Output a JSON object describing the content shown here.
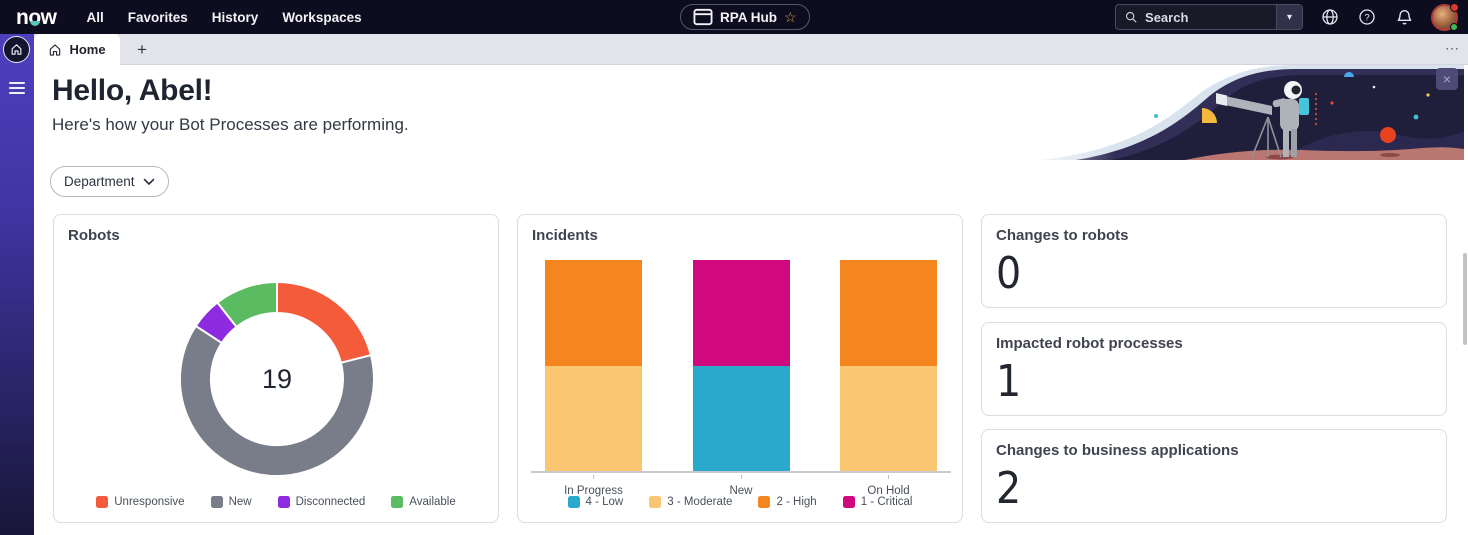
{
  "theme": {
    "nav_bg": "#0D0D1F",
    "rail_top": "#4C40BE",
    "rail_bottom": "#181739",
    "brand_teal": "#5BC6BA"
  },
  "topnav": {
    "logo": "now",
    "menu": [
      "All",
      "Favorites",
      "History",
      "Workspaces"
    ],
    "app_pill": {
      "label": "RPA Hub"
    },
    "search": {
      "placeholder": "Search"
    }
  },
  "icons": {
    "star": "☆",
    "caret": "▾",
    "add_tab": "+",
    "overflow": "⋯",
    "close": "×"
  },
  "tabbar": {
    "home_label": "Home"
  },
  "hero": {
    "greeting": "Hello, Abel!",
    "subtitle": "Here's how your Bot Processes are performing."
  },
  "filters": {
    "department_label": "Department"
  },
  "cards": {
    "stats": [
      {
        "title": "Changes to robots",
        "value": "0"
      },
      {
        "title": "Impacted robot processes",
        "value": "1"
      },
      {
        "title": "Changes to business applications",
        "value": "2"
      }
    ]
  },
  "chart_data": [
    {
      "type": "pie",
      "title": "Robots",
      "donut": true,
      "center_label": "19",
      "total": 19,
      "segments": [
        {
          "label": "Unresponsive",
          "value": 4,
          "color": "#F45B3B"
        },
        {
          "label": "New",
          "value": 12,
          "color": "#797C89"
        },
        {
          "label": "Disconnected",
          "value": 1,
          "color": "#8E2BE0"
        },
        {
          "label": "Available",
          "value": 2,
          "color": "#5ABB61"
        }
      ],
      "start_angle_deg": 0,
      "inner_radius_ratio": 0.68,
      "legend_position": "bottom"
    },
    {
      "type": "bar",
      "title": "Incidents",
      "stacked": true,
      "categories": [
        "In Progress",
        "New",
        "On Hold"
      ],
      "series": [
        {
          "name": "4 - Low",
          "color": "#2BA9CD",
          "values": [
            0,
            1,
            0
          ]
        },
        {
          "name": "3 - Moderate",
          "color": "#FAC671",
          "values": [
            1,
            0,
            1
          ]
        },
        {
          "name": "2 - High",
          "color": "#F5861F",
          "values": [
            1,
            0,
            1
          ]
        },
        {
          "name": "1 - Critical",
          "color": "#D0097F",
          "values": [
            0,
            1,
            0
          ]
        }
      ],
      "ylim": [
        0,
        2
      ],
      "y_axis_visible": false,
      "grid": false,
      "legend_position": "bottom"
    }
  ]
}
